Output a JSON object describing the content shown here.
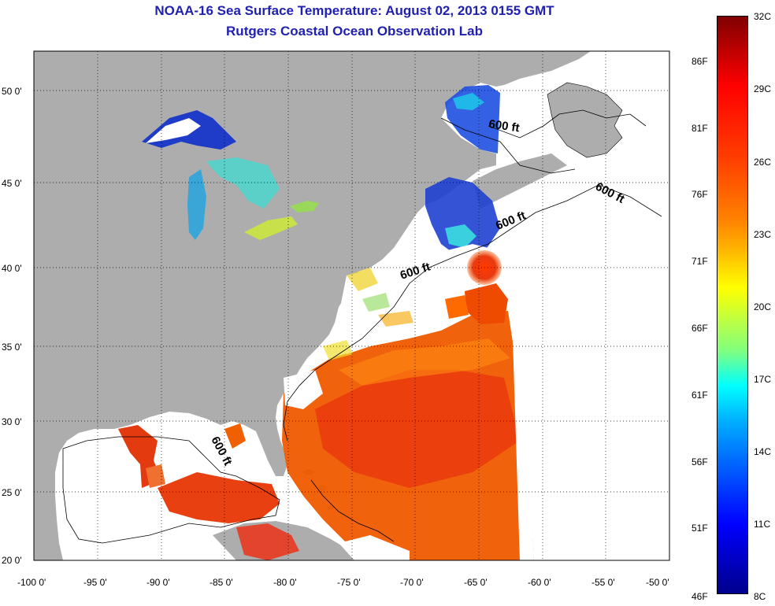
{
  "title": "NOAA-16 Sea Surface Temperature:  August 02, 2013 0155 GMT",
  "subtitle": "Rutgers Coastal Ocean Observation Lab",
  "map": {
    "lon_range": [
      -100,
      -50
    ],
    "lat_range": [
      20,
      52
    ],
    "lon_ticks": [
      "-100 0'",
      "-95 0'",
      "-90 0'",
      "-85 0'",
      "-80 0'",
      "-75 0'",
      "-70 0'",
      "-65 0'",
      "-60 0'",
      "-55 0'",
      "-50 0'"
    ],
    "lat_ticks": [
      "20 0'",
      "25 0'",
      "30 0'",
      "35 0'",
      "40 0'",
      "45 0'",
      "50 0'"
    ],
    "contour_labels": [
      "600 ft",
      "600 ft",
      "600 ft",
      "600 ft",
      "600 ft"
    ],
    "colors": {
      "land": "#adadad",
      "ocean_nodata": "#ffffff",
      "grid": "#000000"
    }
  },
  "colorbar": {
    "celsius_labels": [
      "32C",
      "29C",
      "26C",
      "23C",
      "20C",
      "17C",
      "14C",
      "11C",
      "8C"
    ],
    "fahrenheit_labels": [
      "86F",
      "81F",
      "76F",
      "71F",
      "66F",
      "61F",
      "56F",
      "51F",
      "46F"
    ],
    "range_c": [
      8,
      32
    ],
    "colormap": "jet"
  }
}
